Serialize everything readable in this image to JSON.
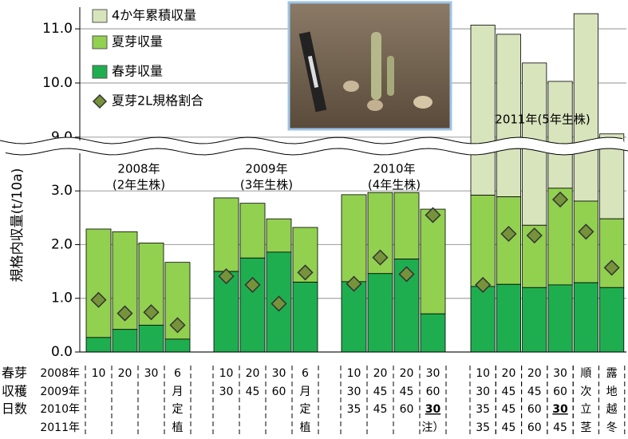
{
  "chart_data": {
    "type": "bar",
    "y_label": "規格内収量(t/10a)",
    "ylim": [
      0,
      11.4
    ],
    "axis_break": [
      3.85,
      8.85
    ],
    "yticks": [
      {
        "value": 0,
        "label": "0.0"
      },
      {
        "value": 1,
        "label": "1.0"
      },
      {
        "value": 2,
        "label": "2.0"
      },
      {
        "value": 3,
        "label": "3.0"
      },
      {
        "value": 9,
        "label": "9.0"
      },
      {
        "value": 10,
        "label": "10.0"
      },
      {
        "value": 11,
        "label": "11.0"
      }
    ],
    "grid": true,
    "series": [
      {
        "name": "春芽収量",
        "color": "#1fae4f",
        "values": [
          0.27,
          0.42,
          0.5,
          0.24,
          1.5,
          1.75,
          1.86,
          1.3,
          1.31,
          1.46,
          1.73,
          0.71,
          1.22,
          1.26,
          1.2,
          1.25,
          1.29,
          1.2
        ]
      },
      {
        "name": "夏芽収量",
        "color": "#92d050",
        "values": [
          2.02,
          1.82,
          1.53,
          1.43,
          1.37,
          1.02,
          0.62,
          1.02,
          1.62,
          1.51,
          1.24,
          1.95,
          1.7,
          1.63,
          1.16,
          1.8,
          1.52,
          1.28
        ]
      },
      {
        "name": "4か年累積収量",
        "color": "#d8e4bc",
        "values": [
          null,
          null,
          null,
          null,
          null,
          null,
          null,
          null,
          null,
          null,
          null,
          null,
          11.07,
          10.9,
          10.37,
          10.03,
          11.28,
          9.06
        ]
      },
      {
        "name": "夏芽2L規格割合",
        "color": "#76933c",
        "values": [
          0.97,
          0.72,
          0.74,
          0.5,
          1.41,
          1.25,
          0.9,
          1.48,
          1.27,
          1.76,
          1.45,
          2.55,
          1.25,
          2.2,
          2.17,
          2.84,
          2.24,
          1.57
        ]
      }
    ],
    "group_labels": [
      [
        "2008年",
        "(2年生株)"
      ],
      [
        "2009年",
        "(3年生株)"
      ],
      [
        "2010年",
        "(4年生株)"
      ],
      [
        "2011年(5年生株)"
      ]
    ],
    "table": {
      "header": [
        "春芽",
        "収穫",
        "日数"
      ],
      "rows": [
        {
          "label": "2008年",
          "cells": [
            "10",
            "20",
            "30",
            "6",
            "10",
            "20",
            "30",
            "6",
            "10",
            "20",
            "20",
            "30",
            "10",
            "20",
            "20",
            "30",
            "順",
            "露"
          ]
        },
        {
          "label": "2009年",
          "cells": [
            null,
            null,
            null,
            "月",
            "30",
            "45",
            "60",
            "月",
            "30",
            "45",
            "45",
            "60",
            "30",
            "45",
            "45",
            "60",
            "次",
            "地"
          ]
        },
        {
          "label": "2010年",
          "cells": [
            null,
            null,
            null,
            "定",
            null,
            null,
            null,
            "定",
            "35",
            "45",
            "60",
            "30",
            "35",
            "45",
            "60",
            "30",
            "立",
            "越"
          ],
          "bold": [
            11,
            15
          ]
        },
        {
          "label": "2011年",
          "cells": [
            null,
            null,
            null,
            "植",
            null,
            null,
            null,
            "植",
            null,
            null,
            null,
            "注）",
            "35",
            "45",
            "60",
            "45",
            "茎",
            "冬"
          ]
        }
      ]
    }
  }
}
